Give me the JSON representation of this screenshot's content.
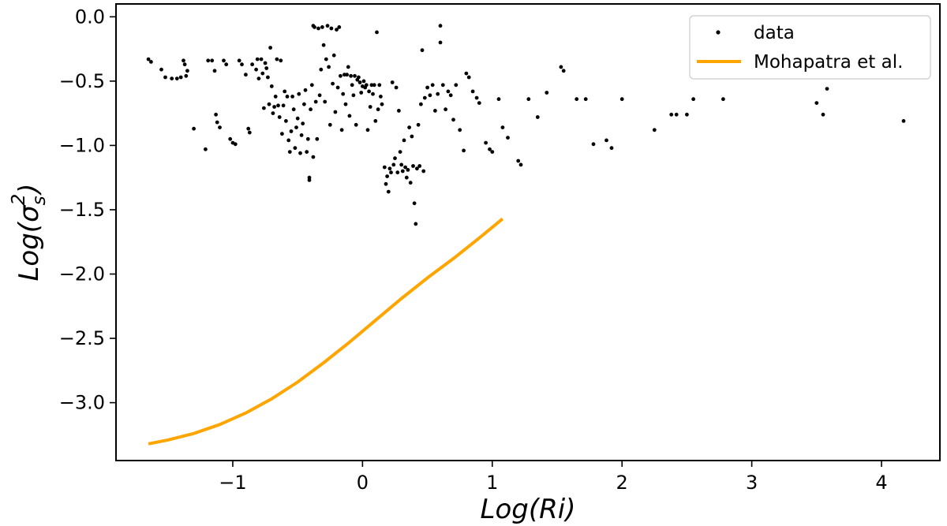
{
  "chart_data": {
    "type": "scatter",
    "xlabel": "Log(Ri)",
    "ylabel": "Log(σs²)",
    "ylabel_parts": {
      "prefix": "Log(",
      "symbol": "σ",
      "subscript": "s",
      "superscript": "2",
      "suffix": ")"
    },
    "xlim": [
      -1.9,
      4.45
    ],
    "ylim": [
      -3.45,
      0.1
    ],
    "x_ticks": [
      -1,
      0,
      1,
      2,
      3,
      4
    ],
    "x_tick_labels": [
      "−1",
      "0",
      "1",
      "2",
      "3",
      "4"
    ],
    "y_ticks": [
      0.0,
      -0.5,
      -1.0,
      -1.5,
      -2.0,
      -2.5,
      -3.0
    ],
    "y_tick_labels": [
      "0.0",
      "−0.5",
      "−1.0",
      "−1.5",
      "−2.0",
      "−2.5",
      "−3.0"
    ],
    "grid": false,
    "legend": {
      "placement": "top-right",
      "entries": [
        {
          "label": "data",
          "marker": "dot",
          "color": "#000000"
        },
        {
          "label": "Mohapatra et al.",
          "marker": "line",
          "color": "#FFA500"
        }
      ]
    },
    "series": [
      {
        "name": "data",
        "kind": "scatter",
        "color": "#000000",
        "points": [
          [
            -1.65,
            -0.33
          ],
          [
            -1.63,
            -0.35
          ],
          [
            -1.55,
            -0.41
          ],
          [
            -1.52,
            -0.47
          ],
          [
            -1.47,
            -0.48
          ],
          [
            -1.43,
            -0.48
          ],
          [
            -1.4,
            -0.47
          ],
          [
            -1.38,
            -0.34
          ],
          [
            -1.37,
            -0.37
          ],
          [
            -1.36,
            -0.46
          ],
          [
            -1.35,
            -0.42
          ],
          [
            -1.3,
            -0.87
          ],
          [
            -1.21,
            -1.03
          ],
          [
            -1.19,
            -0.34
          ],
          [
            -1.16,
            -0.34
          ],
          [
            -1.14,
            -0.42
          ],
          [
            -1.13,
            -0.76
          ],
          [
            -1.12,
            -0.82
          ],
          [
            -1.1,
            -0.86
          ],
          [
            -1.07,
            -0.34
          ],
          [
            -1.05,
            -0.37
          ],
          [
            -1.02,
            -0.95
          ],
          [
            -1.0,
            -0.98
          ],
          [
            -0.98,
            -0.99
          ],
          [
            -0.95,
            -0.34
          ],
          [
            -0.93,
            -0.37
          ],
          [
            -0.9,
            -0.45
          ],
          [
            -0.88,
            -0.87
          ],
          [
            -0.87,
            -0.9
          ],
          [
            -0.85,
            -0.37
          ],
          [
            -0.82,
            -0.41
          ],
          [
            -0.81,
            -0.33
          ],
          [
            -0.8,
            -0.48
          ],
          [
            -0.78,
            -0.33
          ],
          [
            -0.77,
            -0.44
          ],
          [
            -0.76,
            -0.71
          ],
          [
            -0.75,
            -0.36
          ],
          [
            -0.74,
            -0.4
          ],
          [
            -0.73,
            -0.47
          ],
          [
            -0.72,
            -0.68
          ],
          [
            -0.71,
            -0.24
          ],
          [
            -0.7,
            -0.54
          ],
          [
            -0.69,
            -0.75
          ],
          [
            -0.68,
            -0.7
          ],
          [
            -0.67,
            -0.62
          ],
          [
            -0.66,
            -0.33
          ],
          [
            -0.65,
            -0.69
          ],
          [
            -0.64,
            -0.78
          ],
          [
            -0.63,
            -0.34
          ],
          [
            -0.62,
            -0.91
          ],
          [
            -0.61,
            -0.69
          ],
          [
            -0.6,
            -0.58
          ],
          [
            -0.59,
            -0.81
          ],
          [
            -0.58,
            -0.62
          ],
          [
            -0.57,
            -0.96
          ],
          [
            -0.56,
            -1.05
          ],
          [
            -0.55,
            -0.89
          ],
          [
            -0.54,
            -0.62
          ],
          [
            -0.53,
            -0.72
          ],
          [
            -0.52,
            -1.02
          ],
          [
            -0.51,
            -0.86
          ],
          [
            -0.5,
            -0.79
          ],
          [
            -0.49,
            -0.6
          ],
          [
            -0.48,
            -1.06
          ],
          [
            -0.47,
            -0.92
          ],
          [
            -0.46,
            -0.83
          ],
          [
            -0.45,
            -0.68
          ],
          [
            -0.44,
            -0.57
          ],
          [
            -0.43,
            -1.05
          ],
          [
            -0.42,
            -0.95
          ],
          [
            -0.41,
            -1.25
          ],
          [
            -0.41,
            -1.27
          ],
          [
            -0.4,
            -0.72
          ],
          [
            -0.39,
            -0.53
          ],
          [
            -0.38,
            -0.07
          ],
          [
            -0.38,
            -1.09
          ],
          [
            -0.37,
            -0.08
          ],
          [
            -0.36,
            -0.66
          ],
          [
            -0.35,
            -0.95
          ],
          [
            -0.34,
            -0.09
          ],
          [
            -0.33,
            -0.61
          ],
          [
            -0.32,
            -0.41
          ],
          [
            -0.31,
            -0.08
          ],
          [
            -0.3,
            -0.22
          ],
          [
            -0.29,
            -0.66
          ],
          [
            -0.28,
            -0.33
          ],
          [
            -0.27,
            -0.07
          ],
          [
            -0.26,
            -0.39
          ],
          [
            -0.25,
            -0.84
          ],
          [
            -0.24,
            -0.09
          ],
          [
            -0.23,
            -0.52
          ],
          [
            -0.22,
            -0.3
          ],
          [
            -0.21,
            -0.74
          ],
          [
            -0.2,
            -0.1
          ],
          [
            -0.19,
            -0.55
          ],
          [
            -0.18,
            -0.08
          ],
          [
            -0.17,
            -0.46
          ],
          [
            -0.16,
            -0.88
          ],
          [
            -0.15,
            -0.6
          ],
          [
            -0.14,
            -0.45
          ],
          [
            -0.13,
            -0.68
          ],
          [
            -0.12,
            -0.45
          ],
          [
            -0.11,
            -0.39
          ],
          [
            -0.1,
            -0.77
          ],
          [
            -0.09,
            -0.46
          ],
          [
            -0.08,
            -0.53
          ],
          [
            -0.07,
            -0.61
          ],
          [
            -0.06,
            -0.46
          ],
          [
            -0.05,
            -0.84
          ],
          [
            -0.04,
            -0.49
          ],
          [
            -0.03,
            -0.47
          ],
          [
            -0.02,
            -0.51
          ],
          [
            -0.01,
            -0.59
          ],
          [
            0.0,
            -0.54
          ],
          [
            0.01,
            -0.5
          ],
          [
            0.02,
            -0.55
          ],
          [
            0.03,
            -0.53
          ],
          [
            0.04,
            -0.88
          ],
          [
            0.05,
            -0.58
          ],
          [
            0.06,
            -0.7
          ],
          [
            0.07,
            -0.53
          ],
          [
            0.08,
            -0.6
          ],
          [
            0.09,
            -0.53
          ],
          [
            0.1,
            -0.81
          ],
          [
            0.11,
            -0.12
          ],
          [
            0.12,
            -0.72
          ],
          [
            0.13,
            -0.53
          ],
          [
            0.14,
            -0.62
          ],
          [
            0.15,
            -0.68
          ],
          [
            0.17,
            -1.17
          ],
          [
            0.18,
            -1.3
          ],
          [
            0.19,
            -1.24
          ],
          [
            0.2,
            -1.36
          ],
          [
            0.21,
            -1.18
          ],
          [
            0.22,
            -1.21
          ],
          [
            0.23,
            -0.51
          ],
          [
            0.24,
            -1.15
          ],
          [
            0.25,
            -1.1
          ],
          [
            0.26,
            -0.55
          ],
          [
            0.27,
            -1.21
          ],
          [
            0.28,
            -0.73
          ],
          [
            0.29,
            -1.05
          ],
          [
            0.3,
            -1.15
          ],
          [
            0.31,
            -1.2
          ],
          [
            0.32,
            -0.96
          ],
          [
            0.33,
            -1.17
          ],
          [
            0.34,
            -1.25
          ],
          [
            0.35,
            -1.19
          ],
          [
            0.36,
            -0.86
          ],
          [
            0.37,
            -1.29
          ],
          [
            0.38,
            -0.93
          ],
          [
            0.39,
            -1.16
          ],
          [
            0.4,
            -1.45
          ],
          [
            0.41,
            -1.61
          ],
          [
            0.42,
            -1.18
          ],
          [
            0.43,
            -0.84
          ],
          [
            0.44,
            -1.16
          ],
          [
            0.45,
            -0.68
          ],
          [
            0.46,
            -0.26
          ],
          [
            0.47,
            -1.2
          ],
          [
            0.48,
            -0.63
          ],
          [
            0.5,
            -0.55
          ],
          [
            0.52,
            -0.61
          ],
          [
            0.54,
            -0.53
          ],
          [
            0.56,
            -0.73
          ],
          [
            0.58,
            -0.6
          ],
          [
            0.6,
            -0.07
          ],
          [
            0.6,
            -0.2
          ],
          [
            0.62,
            -0.53
          ],
          [
            0.64,
            -0.72
          ],
          [
            0.66,
            -0.58
          ],
          [
            0.68,
            -0.61
          ],
          [
            0.7,
            -0.8
          ],
          [
            0.72,
            -0.53
          ],
          [
            0.75,
            -0.88
          ],
          [
            0.78,
            -1.04
          ],
          [
            0.8,
            -0.44
          ],
          [
            0.82,
            -0.47
          ],
          [
            0.85,
            -0.58
          ],
          [
            0.88,
            -0.63
          ],
          [
            0.9,
            -0.67
          ],
          [
            0.95,
            -0.98
          ],
          [
            0.98,
            -1.03
          ],
          [
            1.0,
            -1.05
          ],
          [
            1.05,
            -0.64
          ],
          [
            1.08,
            -0.86
          ],
          [
            1.12,
            -0.94
          ],
          [
            1.2,
            -1.12
          ],
          [
            1.22,
            -1.15
          ],
          [
            1.28,
            -0.64
          ],
          [
            1.35,
            -0.78
          ],
          [
            1.42,
            -0.59
          ],
          [
            1.53,
            -0.39
          ],
          [
            1.55,
            -0.42
          ],
          [
            1.65,
            -0.64
          ],
          [
            1.72,
            -0.64
          ],
          [
            1.78,
            -0.99
          ],
          [
            1.88,
            -0.96
          ],
          [
            1.92,
            -1.02
          ],
          [
            2.0,
            -0.64
          ],
          [
            2.25,
            -0.88
          ],
          [
            2.38,
            -0.76
          ],
          [
            2.42,
            -0.76
          ],
          [
            2.5,
            -0.76
          ],
          [
            2.55,
            -0.64
          ],
          [
            2.78,
            -0.64
          ],
          [
            3.5,
            -0.67
          ],
          [
            3.55,
            -0.76
          ],
          [
            3.58,
            -0.56
          ],
          [
            4.17,
            -0.81
          ]
        ]
      },
      {
        "name": "Mohapatra et al.",
        "kind": "line",
        "color": "#FFA500",
        "x": [
          -1.65,
          -1.5,
          -1.3,
          -1.1,
          -0.9,
          -0.7,
          -0.5,
          -0.3,
          -0.1,
          0.1,
          0.3,
          0.5,
          0.7,
          0.9,
          1.08
        ],
        "y": [
          -3.32,
          -3.29,
          -3.24,
          -3.17,
          -3.08,
          -2.97,
          -2.84,
          -2.69,
          -2.53,
          -2.36,
          -2.19,
          -2.03,
          -1.88,
          -1.72,
          -1.57
        ]
      }
    ]
  }
}
